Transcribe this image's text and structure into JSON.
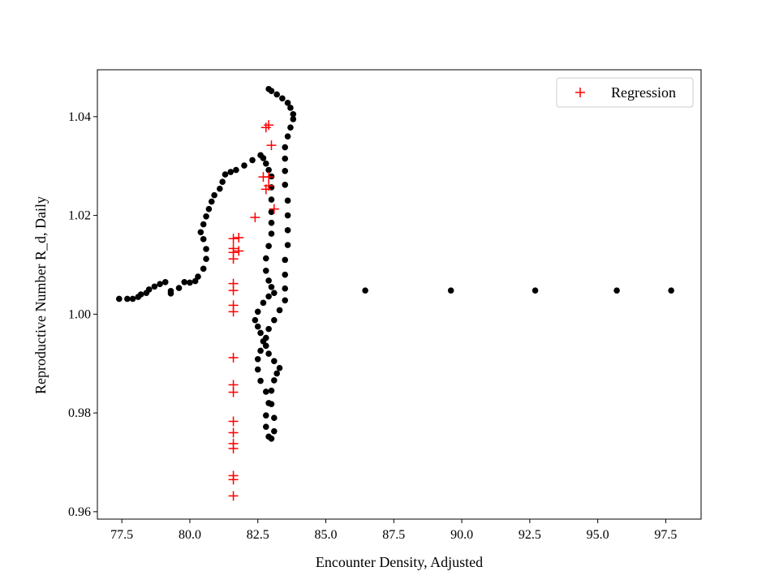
{
  "chart_data": {
    "type": "scatter",
    "title": "",
    "xlabel": "Encounter Density, Adjusted",
    "ylabel": "Reproductive Number R_d, Daily",
    "xlim": [
      76.6,
      98.8
    ],
    "ylim": [
      0.9585,
      1.0495
    ],
    "xticks": [
      77.5,
      80.0,
      82.5,
      85.0,
      87.5,
      90.0,
      92.5,
      95.0,
      97.5
    ],
    "xtick_labels": [
      "77.5",
      "80.0",
      "82.5",
      "85.0",
      "87.5",
      "90.0",
      "92.5",
      "95.0",
      "97.5"
    ],
    "yticks": [
      0.96,
      0.98,
      1.0,
      1.02,
      1.04
    ],
    "ytick_labels": [
      "0.96",
      "0.98",
      "1.00",
      "1.02",
      "1.04"
    ],
    "grid": false,
    "legend": {
      "position": "top-right",
      "entries": [
        "Regression"
      ]
    },
    "series": [
      {
        "name": "",
        "marker": "dot",
        "color": "#000000",
        "points": [
          [
            77.4,
            1.0031
          ],
          [
            77.7,
            1.0031
          ],
          [
            77.9,
            1.0031
          ],
          [
            78.1,
            1.0035
          ],
          [
            78.2,
            1.004
          ],
          [
            78.4,
            1.0043
          ],
          [
            78.5,
            1.005
          ],
          [
            78.7,
            1.0056
          ],
          [
            78.9,
            1.0061
          ],
          [
            79.1,
            1.0065
          ],
          [
            79.3,
            1.0047
          ],
          [
            79.3,
            1.0042
          ],
          [
            79.6,
            1.0053
          ],
          [
            79.8,
            1.0065
          ],
          [
            80.0,
            1.0064
          ],
          [
            80.2,
            1.0067
          ],
          [
            80.3,
            1.0076
          ],
          [
            80.5,
            1.0092
          ],
          [
            80.6,
            1.0112
          ],
          [
            80.6,
            1.0132
          ],
          [
            80.5,
            1.0152
          ],
          [
            80.4,
            1.0166
          ],
          [
            80.5,
            1.0182
          ],
          [
            80.6,
            1.0198
          ],
          [
            80.7,
            1.0213
          ],
          [
            80.8,
            1.0228
          ],
          [
            80.9,
            1.0241
          ],
          [
            81.1,
            1.0254
          ],
          [
            81.2,
            1.0268
          ],
          [
            81.3,
            1.0283
          ],
          [
            81.5,
            1.0288
          ],
          [
            81.7,
            1.0292
          ],
          [
            82.0,
            1.0301
          ],
          [
            82.3,
            1.0312
          ],
          [
            82.6,
            1.0322
          ],
          [
            82.7,
            1.0316
          ],
          [
            82.8,
            1.0305
          ],
          [
            82.9,
            1.0292
          ],
          [
            83.0,
            1.0279
          ],
          [
            83.0,
            1.0257
          ],
          [
            83.0,
            1.0232
          ],
          [
            83.0,
            1.0207
          ],
          [
            83.0,
            1.0185
          ],
          [
            83.0,
            1.0163
          ],
          [
            82.9,
            1.0138
          ],
          [
            82.8,
            1.0113
          ],
          [
            82.8,
            1.0088
          ],
          [
            82.9,
            1.0068
          ],
          [
            83.0,
            1.0055
          ],
          [
            83.1,
            1.0043
          ],
          [
            82.9,
            1.0036
          ],
          [
            82.7,
            1.0023
          ],
          [
            82.5,
            1.0005
          ],
          [
            82.4,
            0.9988
          ],
          [
            82.5,
            0.9975
          ],
          [
            82.6,
            0.9962
          ],
          [
            82.7,
            0.9945
          ],
          [
            82.6,
            0.9926
          ],
          [
            82.5,
            0.9909
          ],
          [
            82.5,
            0.9888
          ],
          [
            82.6,
            0.9865
          ],
          [
            82.8,
            0.9843
          ],
          [
            82.9,
            0.982
          ],
          [
            82.8,
            0.9795
          ],
          [
            82.8,
            0.9772
          ],
          [
            82.9,
            0.9752
          ],
          [
            83.0,
            0.9748
          ],
          [
            83.1,
            0.9763
          ],
          [
            83.1,
            0.979
          ],
          [
            83.0,
            0.9818
          ],
          [
            83.0,
            0.9845
          ],
          [
            83.1,
            0.9866
          ],
          [
            83.2,
            0.988
          ],
          [
            83.3,
            0.9891
          ],
          [
            83.1,
            0.9905
          ],
          [
            82.9,
            0.992
          ],
          [
            82.8,
            0.9936
          ],
          [
            82.8,
            0.9952
          ],
          [
            82.9,
            0.997
          ],
          [
            83.1,
            0.9988
          ],
          [
            83.3,
            1.0008
          ],
          [
            83.5,
            1.0028
          ],
          [
            83.5,
            1.0052
          ],
          [
            83.5,
            1.008
          ],
          [
            83.5,
            1.011
          ],
          [
            83.6,
            1.014
          ],
          [
            83.6,
            1.017
          ],
          [
            83.6,
            1.02
          ],
          [
            83.6,
            1.023
          ],
          [
            83.5,
            1.0262
          ],
          [
            83.5,
            1.029
          ],
          [
            83.5,
            1.0315
          ],
          [
            83.5,
            1.0338
          ],
          [
            83.6,
            1.036
          ],
          [
            83.7,
            1.0378
          ],
          [
            83.8,
            1.0395
          ],
          [
            83.8,
            1.0405
          ],
          [
            83.7,
            1.0418
          ],
          [
            83.6,
            1.0428
          ],
          [
            83.4,
            1.0437
          ],
          [
            83.2,
            1.0445
          ],
          [
            83.0,
            1.0452
          ],
          [
            82.9,
            1.0456
          ],
          [
            86.45,
            1.0048
          ],
          [
            89.6,
            1.0048
          ],
          [
            92.7,
            1.0048
          ],
          [
            95.7,
            1.0048
          ],
          [
            97.7,
            1.0048
          ]
        ]
      },
      {
        "name": "Regression",
        "marker": "plus",
        "color": "#ff0000",
        "points": [
          [
            81.6,
            0.9632
          ],
          [
            81.6,
            0.9665
          ],
          [
            81.6,
            0.9673
          ],
          [
            81.6,
            0.9728
          ],
          [
            81.6,
            0.9738
          ],
          [
            81.6,
            0.976
          ],
          [
            81.6,
            0.9783
          ],
          [
            81.6,
            0.9842
          ],
          [
            81.6,
            0.9857
          ],
          [
            81.6,
            0.9912
          ],
          [
            81.6,
            1.0005
          ],
          [
            81.6,
            1.0018
          ],
          [
            81.6,
            1.0048
          ],
          [
            81.6,
            1.0062
          ],
          [
            81.6,
            1.0112
          ],
          [
            81.6,
            1.0125
          ],
          [
            81.6,
            1.0133
          ],
          [
            81.6,
            1.0153
          ],
          [
            81.8,
            1.0128
          ],
          [
            81.8,
            1.0155
          ],
          [
            82.4,
            1.0196
          ],
          [
            82.8,
            1.0253
          ],
          [
            82.9,
            1.026
          ],
          [
            82.7,
            1.0278
          ],
          [
            82.9,
            1.0278
          ],
          [
            83.1,
            1.0213
          ],
          [
            83.0,
            1.0342
          ],
          [
            82.8,
            1.0378
          ],
          [
            82.9,
            1.0383
          ]
        ]
      }
    ]
  }
}
